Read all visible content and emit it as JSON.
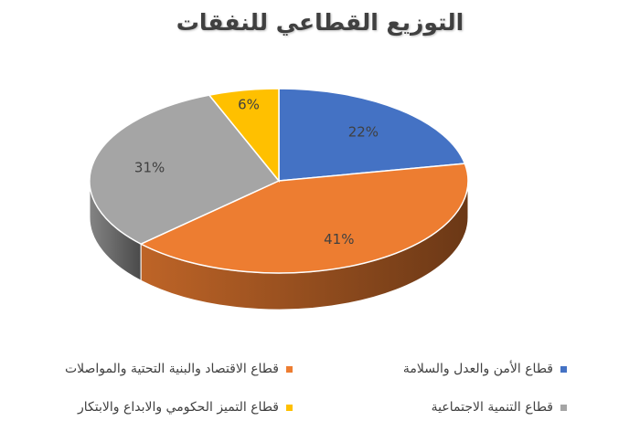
{
  "chart_data": {
    "type": "pie",
    "title": "التوزيع القطاعي للنفقات",
    "slices": [
      {
        "label": "قطاع الأمن والعدل والسلامة",
        "value": 22,
        "display": "22%",
        "color": "#4472C4"
      },
      {
        "label": "قطاع الاقتصاد والبنية التحتية والمواصلات",
        "value": 41,
        "display": "41%",
        "color": "#ED7D31"
      },
      {
        "label": "قطاع التنمية الاجتماعية",
        "value": 31,
        "display": "31%",
        "color": "#A5A5A5"
      },
      {
        "label": "قطاع التميز الحكومي والابداع والابتكار",
        "value": 6,
        "display": "6%",
        "color": "#FFC000"
      }
    ],
    "legend_position": "bottom"
  }
}
